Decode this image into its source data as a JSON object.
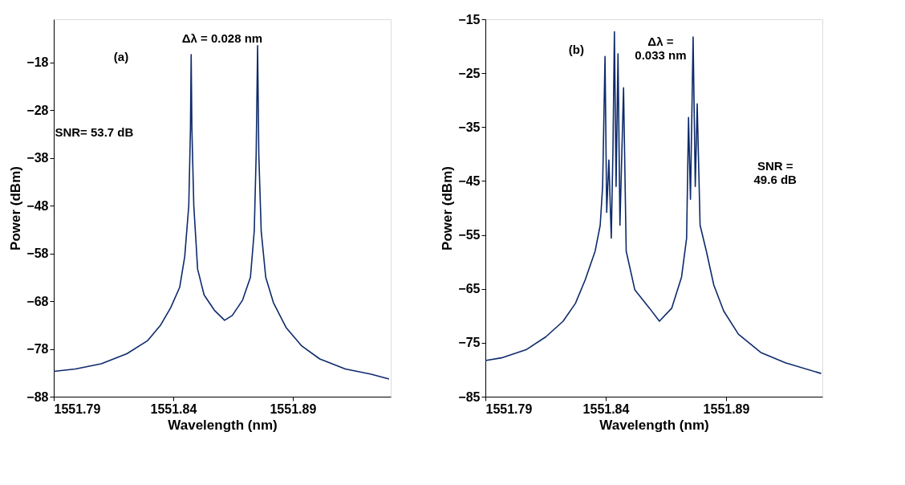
{
  "chart_data": [
    {
      "type": "line",
      "xlabel": "Wavelength (nm)",
      "ylabel": "Power (dBm)",
      "xlim": [
        1551.79,
        1551.931
      ],
      "ylim": [
        -88,
        -9
      ],
      "xticks": [
        1551.79,
        1551.84,
        1551.89
      ],
      "yticks": [
        -88,
        -78,
        -68,
        -58,
        -48,
        -38,
        -28,
        -18
      ],
      "grid": false,
      "series": [
        {
          "color": "#0d2a6b",
          "x": [
            1551.79,
            1551.7991,
            1551.8099,
            1551.8206,
            1551.8292,
            1551.8346,
            1551.8389,
            1551.8427,
            1551.8448,
            1551.8465,
            1551.8472,
            1551.8475,
            1551.8478,
            1551.8486,
            1551.8502,
            1551.8529,
            1551.8572,
            1551.8615,
            1551.8647,
            1551.869,
            1551.8723,
            1551.8739,
            1551.8747,
            1551.8753,
            1551.8758,
            1551.8768,
            1551.8787,
            1551.8819,
            1551.8873,
            1551.8938,
            1551.9013,
            1551.912,
            1551.9228,
            1551.9303
          ],
          "values": [
            -82.7,
            -82.2,
            -81.1,
            -79.0,
            -76.3,
            -73.1,
            -69.4,
            -65.1,
            -58.7,
            -48.0,
            -31.9,
            -16.4,
            -31.9,
            -48.0,
            -61.3,
            -66.7,
            -69.9,
            -72.0,
            -71.0,
            -67.8,
            -63.0,
            -53.3,
            -37.2,
            -14.5,
            -37.2,
            -53.3,
            -63.0,
            -68.3,
            -73.6,
            -77.4,
            -80.1,
            -82.2,
            -83.3,
            -84.3
          ]
        }
      ],
      "annotations": [
        "(a)",
        "Δλ = 0.028 nm",
        "SNR= 53.7 dB"
      ]
    },
    {
      "type": "line",
      "xlabel": "Wavelength (nm)",
      "ylabel": "Power (dBm)",
      "xlim": [
        1551.79,
        1551.93
      ],
      "ylim": [
        -85,
        -15
      ],
      "xticks": [
        1551.79,
        1551.84,
        1551.89
      ],
      "yticks": [
        -85,
        -75,
        -65,
        -55,
        -45,
        -35,
        -25,
        -15
      ],
      "grid": false,
      "series": [
        {
          "color": "#0d2a6b",
          "x": [
            1551.79,
            1551.7967,
            1551.8069,
            1551.8151,
            1551.8223,
            1551.8274,
            1551.8315,
            1551.8356,
            1551.8377,
            1551.8387,
            1551.8397,
            1551.8404,
            1551.8413,
            1551.8423,
            1551.843,
            1551.8436,
            1551.8443,
            1551.8451,
            1551.8459,
            1551.8474,
            1551.8485,
            1551.8521,
            1551.8582,
            1551.8623,
            1551.8674,
            1551.8715,
            1551.8736,
            1551.8744,
            1551.8752,
            1551.8763,
            1551.8772,
            1551.878,
            1551.8792,
            1551.8818,
            1551.8849,
            1551.889,
            1551.8951,
            1551.9044,
            1551.9146,
            1551.9295
          ],
          "values": [
            -78.3,
            -77.8,
            -76.3,
            -73.9,
            -71.0,
            -67.7,
            -63.3,
            -58.0,
            -53.2,
            -46.0,
            -21.9,
            -50.8,
            -41.1,
            -55.6,
            -39.2,
            -17.3,
            -46.0,
            -21.4,
            -53.2,
            -27.7,
            -58.0,
            -65.2,
            -68.6,
            -71.0,
            -68.6,
            -62.8,
            -55.6,
            -33.2,
            -48.4,
            -18.3,
            -46.0,
            -30.7,
            -53.2,
            -58.0,
            -64.3,
            -69.1,
            -73.4,
            -76.8,
            -78.7,
            -80.7
          ]
        }
      ],
      "annotations": [
        "(b)",
        "Δλ =\n0.033 nm",
        "SNR =\n49.6 dB"
      ]
    }
  ]
}
